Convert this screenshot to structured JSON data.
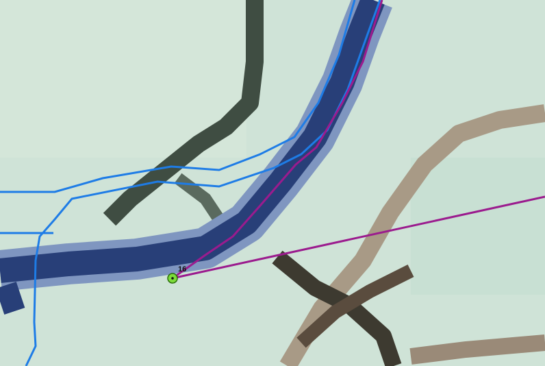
{
  "marker": {
    "label": "16"
  }
}
